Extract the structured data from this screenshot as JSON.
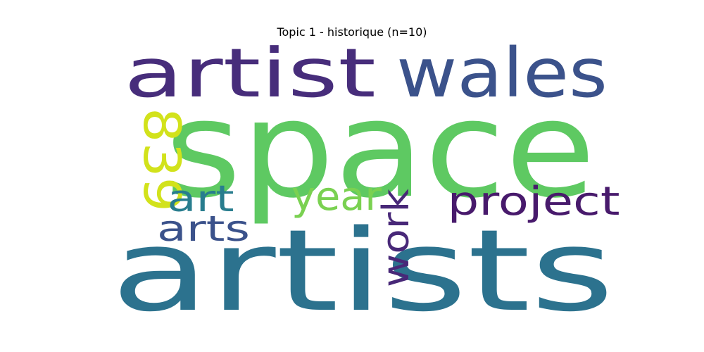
{
  "title": "Topic 1 - historique (n=10)",
  "words": [
    {
      "text": "space",
      "color": "#5ec962"
    },
    {
      "text": "artists",
      "color": "#2c728e"
    },
    {
      "text": "artist",
      "color": "#472d7b"
    },
    {
      "text": "wales",
      "color": "#3b528b"
    },
    {
      "text": "project",
      "color": "#481a6c"
    },
    {
      "text": "839",
      "color": "#d2e21b"
    },
    {
      "text": "art",
      "color": "#287d8e"
    },
    {
      "text": "year",
      "color": "#7ad151"
    },
    {
      "text": "arts",
      "color": "#3b528b"
    },
    {
      "text": "work",
      "color": "#482878"
    }
  ]
}
